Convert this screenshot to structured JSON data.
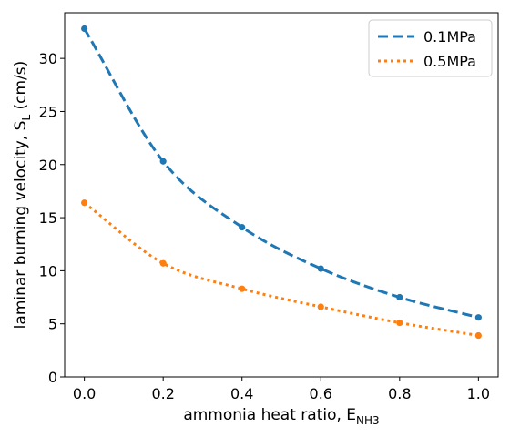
{
  "chart_data": {
    "type": "line",
    "title": "",
    "xlabel": "ammonia heat ratio, E",
    "xlabel_subscript": "NH3",
    "ylabel": "laminar burning velocity, S",
    "ylabel_subscript": "L",
    "ylabel_unit": " (cm/s)",
    "xlim": [
      -0.05,
      1.05
    ],
    "ylim": [
      0,
      34.3
    ],
    "xticks": [
      0.0,
      0.2,
      0.4,
      0.6,
      0.8,
      1.0
    ],
    "xtick_labels": [
      "0.0",
      "0.2",
      "0.4",
      "0.6",
      "0.8",
      "1.0"
    ],
    "yticks": [
      0,
      5,
      10,
      15,
      20,
      25,
      30
    ],
    "ytick_labels": [
      "0",
      "5",
      "10",
      "15",
      "20",
      "25",
      "30"
    ],
    "grid": false,
    "legend_position": "top-right",
    "x": [
      0.0,
      0.2,
      0.4,
      0.6,
      0.8,
      1.0
    ],
    "series": [
      {
        "name": "0.1MPa",
        "color": "#1f77b4",
        "line_style": "dashed",
        "values": [
          32.8,
          20.3,
          14.1,
          10.2,
          7.5,
          5.6
        ]
      },
      {
        "name": "0.5MPa",
        "color": "#ff7f0e",
        "line_style": "dotted",
        "values": [
          16.4,
          10.7,
          8.3,
          6.6,
          5.1,
          3.9
        ]
      }
    ]
  }
}
